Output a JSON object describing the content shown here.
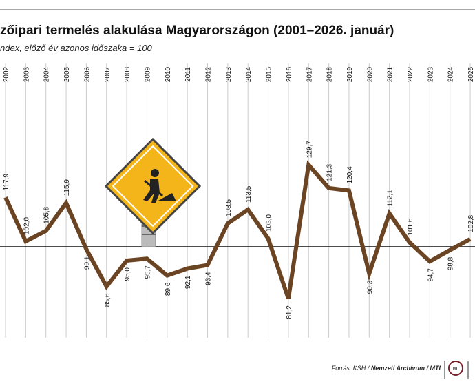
{
  "chart_data": {
    "type": "line",
    "title": "zőipari termelés alakulása Magyarországon (2001–2026. január)",
    "subtitle": "ndex, előző év azonos időszaka = 100",
    "source": "Forrás: KSH",
    "source_2": "Nemzeti Archívum / MTI",
    "logo": "MTI",
    "categories": [
      "2002",
      "2003",
      "2004",
      "2005",
      "2006",
      "2007",
      "2008",
      "2009",
      "2010",
      "2011",
      "2012",
      "2013",
      "2014",
      "2015",
      "2016",
      "2017",
      "2018",
      "2019",
      "2020",
      "2021",
      "2022",
      "2023",
      "2024",
      "2025"
    ],
    "series": [
      {
        "name": "Index",
        "color": "#6b4423",
        "values": [
          117.9,
          102.0,
          105.8,
          115.9,
          99.1,
          85.6,
          95.0,
          95.7,
          89.6,
          92.1,
          93.4,
          108.5,
          113.5,
          103.0,
          81.2,
          129.7,
          121.3,
          120.4,
          90.3,
          112.1,
          101.6,
          94.7,
          98.8,
          102.8
        ],
        "value_labels": [
          "117,9",
          "102,0",
          "105,8",
          "115,9",
          "99,1",
          "85,6",
          "95,0",
          "95,7",
          "89,6",
          "92,1",
          "93,4",
          "108,5",
          "113,5",
          "103,0",
          "81,2",
          "129,7",
          "121,3",
          "120,4",
          "90,3",
          "112,1",
          "101,6",
          "94,7",
          "98,8",
          "102,8"
        ]
      }
    ],
    "ylim": [
      70,
      157
    ],
    "reference_line": 100
  }
}
